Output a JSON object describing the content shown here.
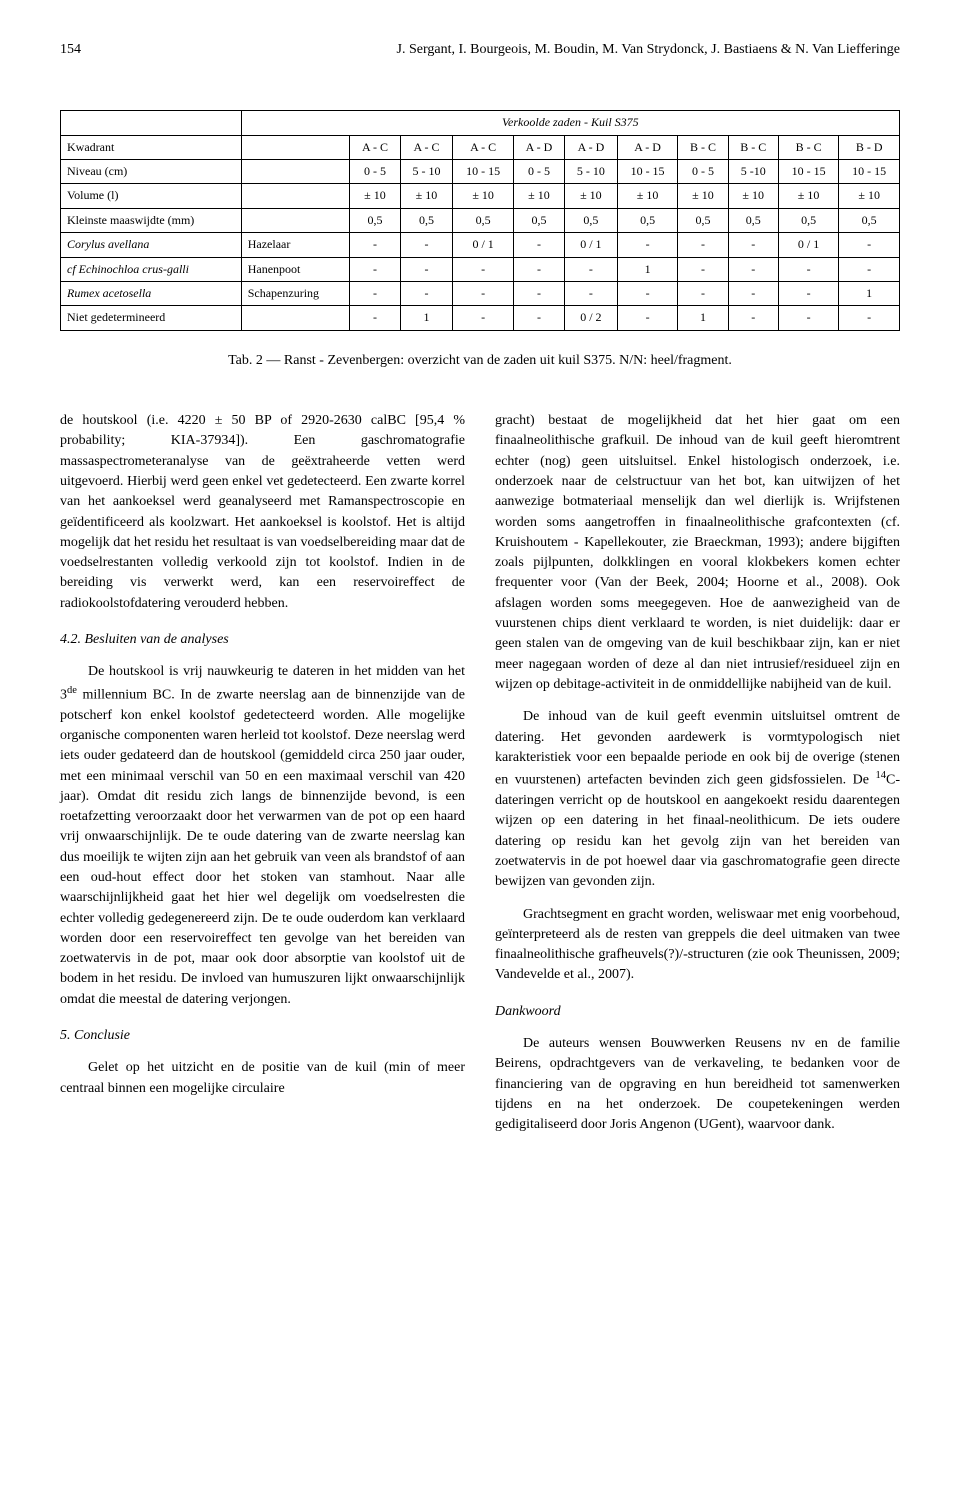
{
  "header": {
    "page_number": "154",
    "running_head": "J. Sergant, I. Bourgeois, M. Boudin, M. Van Strydonck, J. Bastiaens & N. Van Liefferinge"
  },
  "table": {
    "title": "Verkoolde zaden - Kuil S375",
    "row_labels": {
      "kwadrant": "Kwadrant",
      "niveau": "Niveau (cm)",
      "volume": "Volume (l)",
      "maaswijdte": "Kleinste maaswijdte (mm)"
    },
    "kwadrant_vals": [
      "A - C",
      "A - C",
      "A - C",
      "A - D",
      "A - D",
      "A - D",
      "B - C",
      "B - C",
      "B - C",
      "B - D"
    ],
    "niveau_vals": [
      "0 - 5",
      "5 - 10",
      "10 - 15",
      "0 - 5",
      "5 - 10",
      "10 - 15",
      "0 - 5",
      "5 -10",
      "10 - 15",
      "10 - 15"
    ],
    "volume_vals": [
      "± 10",
      "± 10",
      "± 10",
      "± 10",
      "± 10",
      "± 10",
      "± 10",
      "± 10",
      "± 10",
      "± 10"
    ],
    "maaswijdte_vals": [
      "0,5",
      "0,5",
      "0,5",
      "0,5",
      "0,5",
      "0,5",
      "0,5",
      "0,5",
      "0,5",
      "0,5"
    ],
    "species_rows": [
      {
        "latin": "Corylus avellana",
        "common": "Hazelaar",
        "vals": [
          "-",
          "-",
          "0 / 1",
          "-",
          "0 / 1",
          "-",
          "-",
          "-",
          "0 / 1",
          "-"
        ]
      },
      {
        "latin": "cf Echinochloa crus-galli",
        "common": "Hanenpoot",
        "vals": [
          "-",
          "-",
          "-",
          "-",
          "-",
          "1",
          "-",
          "-",
          "-",
          "-"
        ]
      },
      {
        "latin": "Rumex acetosella",
        "common": "Schapenzuring",
        "vals": [
          "-",
          "-",
          "-",
          "-",
          "-",
          "-",
          "-",
          "-",
          "-",
          "1"
        ]
      },
      {
        "latin": "Niet gedetermineerd",
        "common": "",
        "vals": [
          "-",
          "1",
          "-",
          "-",
          "0 / 2",
          "-",
          "1",
          "-",
          "-",
          "-"
        ]
      }
    ]
  },
  "caption": "Tab. 2 — Ranst - Zevenbergen: overzicht van de zaden uit kuil S375.  N/N: heel/fragment.",
  "body": {
    "p1": "de houtskool (i.e. 4220 ± 50 BP of 2920-2630 calBC [95,4 % probability; KIA-37934]). Een gaschromatografie massaspectrometeranalyse van de geëxtraheerde vetten werd uitgevoerd. Hierbij werd geen enkel vet gedetecteerd. Een zwarte korrel van het aankoeksel werd geanalyseerd met Ramanspectroscopie en geïdentificeerd als koolzwart. Het aankoeksel is koolstof. Het is altijd mogelijk dat het residu het resultaat is van voedselbereiding maar dat de voedselrestanten volledig verkoold zijn tot koolstof. Indien in de bereiding vis verwerkt werd, kan een reservoireffect de radiokoolstofdatering verouderd hebben.",
    "h42": "4.2. Besluiten van de analyses",
    "p2_pre": "De houtskool is vrij nauwkeurig te dateren in het midden van het 3",
    "p2_sup": "de",
    "p2_post": " millennium BC.  In de zwarte neerslag aan de binnenzijde van de potscherf kon enkel koolstof gedetecteerd worden. Alle mogelijke organische componenten waren herleid tot koolstof. Deze neerslag werd iets ouder gedateerd dan de houtskool (gemiddeld circa 250 jaar ouder, met een minimaal verschil van 50 en een maximaal verschil van 420 jaar).  Omdat dit residu zich langs de binnenzijde bevond, is een roetafzetting veroorzaakt door het verwarmen van de pot op een haard vrij onwaarschijnlijk. De te oude datering van de zwarte neerslag kan dus moeilijk te wijten zijn aan het gebruik van veen als brandstof of aan een oud-hout effect door het stoken van stamhout.  Naar alle waarschijnlijkheid gaat het hier wel degelijk om voedselresten die echter volledig gedegenereerd zijn.  De te oude ouderdom kan verklaard worden door een reservoireffect ten gevolge van het bereiden van zoetwatervis in de pot, maar ook door absorptie van koolstof uit de bodem in het residu.  De invloed van humuszuren lijkt onwaarschijnlijk omdat die meestal de datering verjongen.",
    "h5": "5. Conclusie",
    "p3": "Gelet op het uitzicht en de positie van de kuil (min of meer centraal binnen een mogelijke circulaire",
    "p4": "gracht) bestaat de mogelijkheid dat het hier gaat om een finaalneolithische grafkuil. De inhoud van de kuil geeft hieromtrent echter (nog) geen uitsluitsel. Enkel histologisch onderzoek, i.e. onderzoek naar de celstructuur van het bot, kan uitwijzen of het aanwezige botmateriaal menselijk dan wel dierlijk is. Wrijfstenen worden soms aangetroffen in finaalneolithische grafcontexten (cf. Kruishoutem - Kapellekouter, zie Braeckman, 1993); andere bijgiften zoals pijlpunten, dolkklingen en vooral klokbekers komen echter frequenter voor (Van der Beek, 2004; Hoorne et al., 2008). Ook afslagen worden soms meegegeven.  Hoe de aanwezigheid van de vuurstenen chips dient verklaard te worden, is niet duidelijk: daar er geen stalen van de omgeving van de kuil beschikbaar zijn, kan er niet meer nagegaan worden of deze al dan niet intrusief/residueel zijn en wijzen op debitage-activiteit in de onmiddellijke nabijheid van de kuil.",
    "p5_pre": "De inhoud van de kuil geeft evenmin uitsluitsel omtrent de datering. Het gevonden aardewerk is vormtypologisch niet karakteristiek voor een bepaalde periode en ook bij de overige (stenen en vuurstenen) artefacten bevinden zich geen gidsfossielen.  De ",
    "p5_sup": "14",
    "p5_post": "C-dateringen verricht op de houtskool en aangekoekt residu daarentegen wijzen op een datering in het finaal-neolithicum. De iets oudere datering op residu kan het gevolg zijn van het bereiden van zoetwatervis in de pot hoewel daar via gaschromatografie geen directe bewijzen van gevonden zijn.",
    "p6": "Grachtsegment en gracht worden, weliswaar met enig voorbehoud, geïnterpreteerd als de resten van greppels die deel uitmaken van twee finaalneolithische grafheuvels(?)/-structuren (zie ook Theunissen, 2009; Vandevelde et al., 2007).",
    "dankwoord_h": "Dankwoord",
    "p7": "De auteurs wensen Bouwwerken Reusens nv en de familie Beirens, opdrachtgevers van de verkaveling, te bedanken voor de financiering van de opgraving en hun bereidheid tot samenwerken tijdens en na het onderzoek. De coupetekeningen werden gedigitaliseerd door Joris Angenon (UGent), waarvoor dank."
  }
}
